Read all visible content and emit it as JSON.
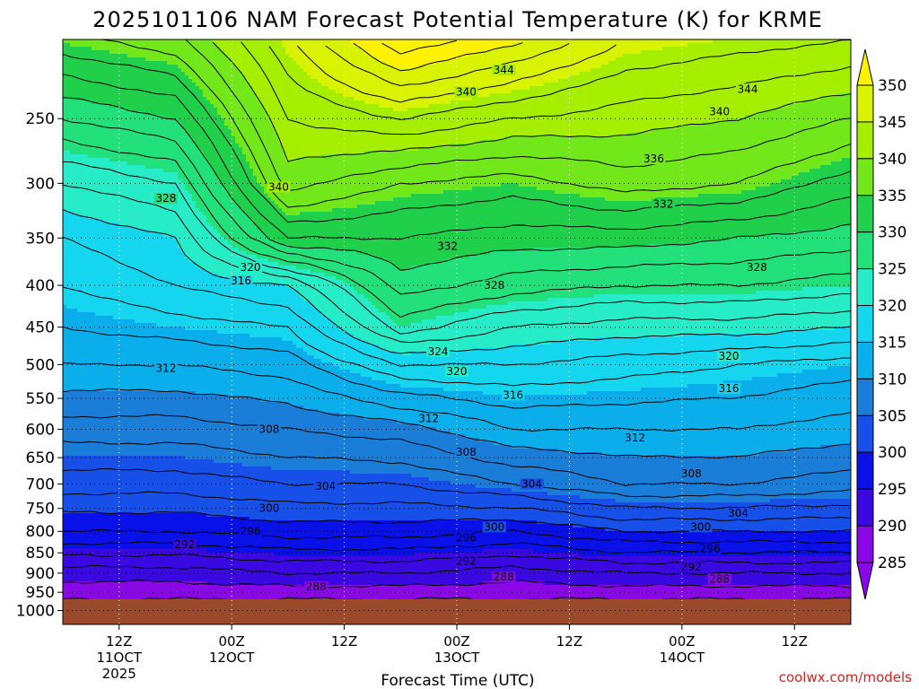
{
  "chart_data": {
    "type": "heatmap",
    "title": "2025101106 NAM Forecast Potential Temperature (K) for KRME",
    "xlabel": "Forecast Time (UTC)",
    "ylabel": "",
    "y_scale": "log",
    "y_reversed": true,
    "y_ticks": [
      250,
      300,
      350,
      400,
      450,
      500,
      550,
      600,
      650,
      700,
      750,
      800,
      850,
      900,
      950,
      1000
    ],
    "ylim": [
      200,
      1040
    ],
    "x_ticks": [
      {
        "label": "12Z",
        "sub": "11OCT",
        "sub2": "2025",
        "hour": 6
      },
      {
        "label": "00Z",
        "sub": "12OCT",
        "sub2": "",
        "hour": 18
      },
      {
        "label": "12Z",
        "sub": "",
        "sub2": "",
        "hour": 30
      },
      {
        "label": "00Z",
        "sub": "13OCT",
        "sub2": "",
        "hour": 42
      },
      {
        "label": "12Z",
        "sub": "",
        "sub2": "",
        "hour": 54
      },
      {
        "label": "00Z",
        "sub": "14OCT",
        "sub2": "",
        "hour": 66
      },
      {
        "label": "12Z",
        "sub": "",
        "sub2": "",
        "hour": 78
      }
    ],
    "xlim": [
      0,
      84
    ],
    "grid": true,
    "colorbar": {
      "labels": [
        350,
        345,
        340,
        335,
        330,
        325,
        320,
        315,
        310,
        305,
        300,
        295,
        290,
        285
      ],
      "colors": [
        "#fff200",
        "#d9f200",
        "#a6ee00",
        "#72e81a",
        "#20d04a",
        "#22e07a",
        "#26ecc8",
        "#14d6ee",
        "#0aaeea",
        "#1a7ed8",
        "#1650e8",
        "#0a10e8",
        "#3a08e0",
        "#8a08e8"
      ]
    },
    "ground_color": "#9a4a2a",
    "ground_pressure": 968,
    "theta_profiles": [
      {
        "hour": 0,
        "levels": [
          [
            250,
            328
          ],
          [
            300,
            322
          ],
          [
            350,
            318
          ],
          [
            400,
            316
          ],
          [
            450,
            314
          ],
          [
            500,
            312
          ],
          [
            600,
            307
          ],
          [
            700,
            303
          ],
          [
            800,
            298
          ],
          [
            900,
            291
          ],
          [
            968,
            288
          ]
        ]
      },
      {
        "hour": 12,
        "levels": [
          [
            250,
            330
          ],
          [
            300,
            324
          ],
          [
            350,
            320
          ],
          [
            400,
            318
          ],
          [
            450,
            315
          ],
          [
            500,
            312
          ],
          [
            600,
            307
          ],
          [
            700,
            303
          ],
          [
            800,
            298
          ],
          [
            900,
            291
          ],
          [
            968,
            288
          ]
        ]
      },
      {
        "hour": 24,
        "levels": [
          [
            250,
            342
          ],
          [
            300,
            339
          ],
          [
            350,
            332
          ],
          [
            400,
            320
          ],
          [
            450,
            316
          ],
          [
            500,
            313
          ],
          [
            600,
            308
          ],
          [
            700,
            304
          ],
          [
            800,
            299
          ],
          [
            900,
            292
          ],
          [
            968,
            288
          ]
        ]
      },
      {
        "hour": 36,
        "levels": [
          [
            250,
            344
          ],
          [
            300,
            336
          ],
          [
            350,
            332
          ],
          [
            400,
            329
          ],
          [
            450,
            325
          ],
          [
            500,
            318
          ],
          [
            600,
            309
          ],
          [
            700,
            304
          ],
          [
            800,
            299
          ],
          [
            900,
            292
          ],
          [
            968,
            288
          ]
        ]
      },
      {
        "hour": 48,
        "levels": [
          [
            250,
            342
          ],
          [
            300,
            335
          ],
          [
            350,
            331
          ],
          [
            400,
            327
          ],
          [
            450,
            322
          ],
          [
            500,
            318
          ],
          [
            600,
            312
          ],
          [
            700,
            306
          ],
          [
            800,
            298
          ],
          [
            900,
            291
          ],
          [
            968,
            288
          ]
        ]
      },
      {
        "hour": 60,
        "levels": [
          [
            250,
            341
          ],
          [
            300,
            337
          ],
          [
            350,
            331
          ],
          [
            400,
            326
          ],
          [
            450,
            321
          ],
          [
            500,
            317
          ],
          [
            600,
            312
          ],
          [
            700,
            308
          ],
          [
            800,
            300
          ],
          [
            900,
            292
          ],
          [
            968,
            288
          ]
        ]
      },
      {
        "hour": 72,
        "levels": [
          [
            250,
            340
          ],
          [
            300,
            336
          ],
          [
            350,
            330
          ],
          [
            400,
            326
          ],
          [
            450,
            321
          ],
          [
            500,
            316
          ],
          [
            600,
            312
          ],
          [
            700,
            308
          ],
          [
            800,
            300
          ],
          [
            900,
            292
          ],
          [
            968,
            288
          ]
        ]
      },
      {
        "hour": 84,
        "levels": [
          [
            250,
            338
          ],
          [
            300,
            333
          ],
          [
            350,
            329
          ],
          [
            400,
            325
          ],
          [
            450,
            320
          ],
          [
            500,
            315
          ],
          [
            600,
            311
          ],
          [
            700,
            307
          ],
          [
            800,
            300
          ],
          [
            900,
            292
          ],
          [
            968,
            288
          ]
        ]
      }
    ],
    "contour_labels": [
      {
        "value": 344,
        "hour": 47,
        "p": 218
      },
      {
        "value": 344,
        "hour": 73,
        "p": 230
      },
      {
        "value": 340,
        "hour": 43,
        "p": 232
      },
      {
        "value": 340,
        "hour": 70,
        "p": 245
      },
      {
        "value": 340,
        "hour": 23,
        "p": 303
      },
      {
        "value": 336,
        "hour": 63,
        "p": 280
      },
      {
        "value": 332,
        "hour": 64,
        "p": 318
      },
      {
        "value": 332,
        "hour": 41,
        "p": 358
      },
      {
        "value": 328,
        "hour": 11,
        "p": 313
      },
      {
        "value": 328,
        "hour": 46,
        "p": 400
      },
      {
        "value": 328,
        "hour": 74,
        "p": 380
      },
      {
        "value": 324,
        "hour": 40,
        "p": 482
      },
      {
        "value": 320,
        "hour": 20,
        "p": 380
      },
      {
        "value": 320,
        "hour": 42,
        "p": 510
      },
      {
        "value": 320,
        "hour": 71,
        "p": 488
      },
      {
        "value": 316,
        "hour": 19,
        "p": 395
      },
      {
        "value": 316,
        "hour": 48,
        "p": 545
      },
      {
        "value": 316,
        "hour": 71,
        "p": 535
      },
      {
        "value": 312,
        "hour": 11,
        "p": 505
      },
      {
        "value": 312,
        "hour": 39,
        "p": 582
      },
      {
        "value": 312,
        "hour": 61,
        "p": 615
      },
      {
        "value": 308,
        "hour": 22,
        "p": 600
      },
      {
        "value": 308,
        "hour": 43,
        "p": 640
      },
      {
        "value": 308,
        "hour": 67,
        "p": 680
      },
      {
        "value": 304,
        "hour": 28,
        "p": 705
      },
      {
        "value": 304,
        "hour": 50,
        "p": 700
      },
      {
        "value": 304,
        "hour": 72,
        "p": 760
      },
      {
        "value": 300,
        "hour": 22,
        "p": 750
      },
      {
        "value": 300,
        "hour": 46,
        "p": 790
      },
      {
        "value": 300,
        "hour": 68,
        "p": 790
      },
      {
        "value": 296,
        "hour": 20,
        "p": 800
      },
      {
        "value": 296,
        "hour": 43,
        "p": 815
      },
      {
        "value": 296,
        "hour": 69,
        "p": 840
      },
      {
        "value": 292,
        "hour": 13,
        "p": 830
      },
      {
        "value": 292,
        "hour": 43,
        "p": 870
      },
      {
        "value": 292,
        "hour": 67,
        "p": 885
      },
      {
        "value": 288,
        "hour": 27,
        "p": 935
      },
      {
        "value": 288,
        "hour": 47,
        "p": 910
      },
      {
        "value": 288,
        "hour": 70,
        "p": 915
      }
    ]
  },
  "credit": "coolwx.com/models"
}
